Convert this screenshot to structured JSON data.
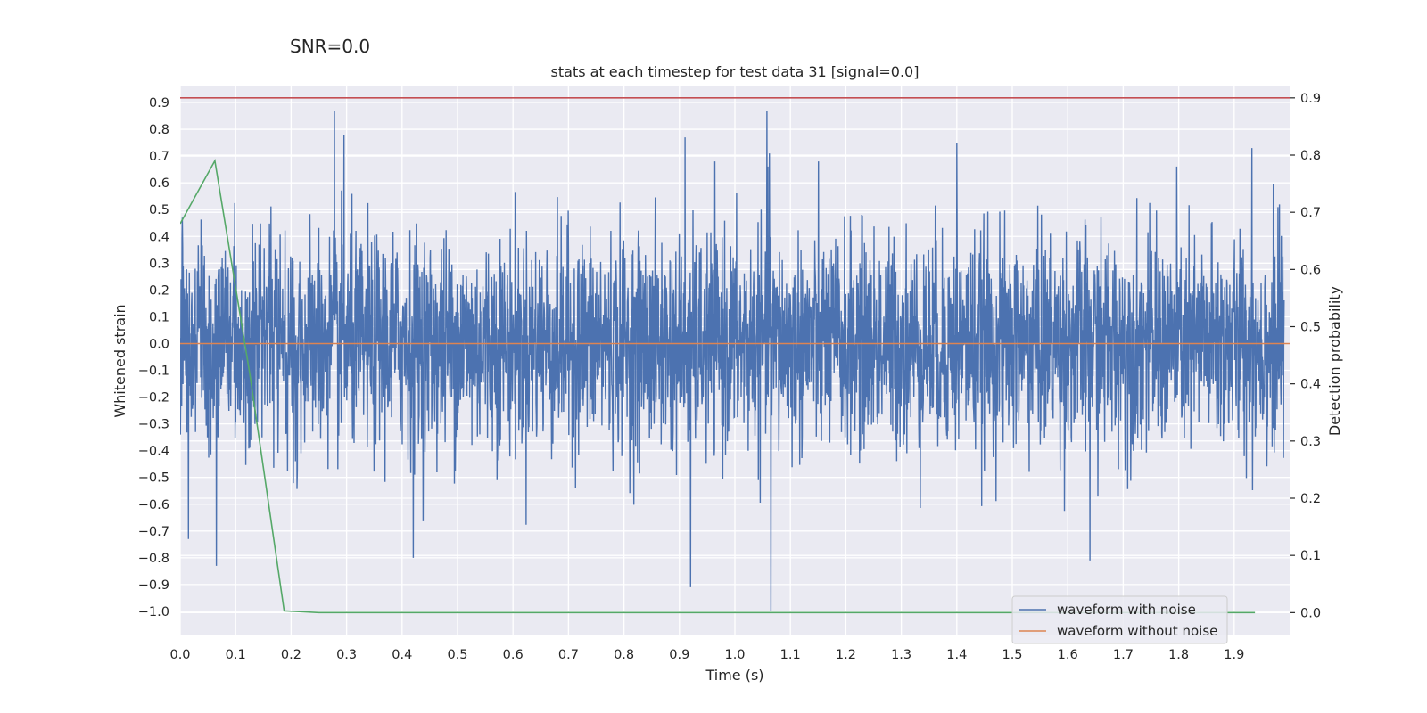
{
  "figure": {
    "suptitle": "SNR=0.0"
  },
  "chart_data": {
    "type": "line",
    "title": "stats at each timestep for test data 31 [signal=0.0]",
    "xlabel": "Time (s)",
    "ylabel": "Whitened strain",
    "ylabel_right": "Detection probability",
    "xlim": [
      0.0,
      2.0
    ],
    "ylim": [
      -1.09,
      0.96
    ],
    "ylim_right": [
      -0.04,
      0.92
    ],
    "xticks": [
      "0.0",
      "0.1",
      "0.2",
      "0.3",
      "0.4",
      "0.5",
      "0.6",
      "0.7",
      "0.8",
      "0.9",
      "1.0",
      "1.1",
      "1.2",
      "1.3",
      "1.4",
      "1.5",
      "1.6",
      "1.7",
      "1.8",
      "1.9"
    ],
    "yticks": [
      "0.9",
      "0.8",
      "0.7",
      "0.6",
      "0.5",
      "0.4",
      "0.3",
      "0.2",
      "0.1",
      "0.0",
      "−0.1",
      "−0.2",
      "−0.3",
      "−0.4",
      "−0.5",
      "−0.6",
      "−0.7",
      "−0.8",
      "−0.9",
      "−1.0"
    ],
    "yticks_right": [
      "0.9",
      "0.8",
      "0.7",
      "0.6",
      "0.5",
      "0.4",
      "0.3",
      "0.2",
      "0.1",
      "0.0"
    ],
    "grid": true,
    "legend_position": "lower-right",
    "series": [
      {
        "name": "waveform with noise",
        "axis": "left",
        "color": "#4c72b0",
        "noise_sigma": 0.2,
        "peaks": [
          [
            0.278,
            0.87
          ],
          [
            0.295,
            0.78
          ],
          [
            0.91,
            0.77
          ],
          [
            1.058,
            0.87
          ],
          [
            1.062,
            0.71
          ],
          [
            1.065,
            -1.0
          ],
          [
            0.92,
            -0.91
          ],
          [
            0.065,
            -0.83
          ],
          [
            0.42,
            -0.8
          ],
          [
            0.015,
            -0.73
          ],
          [
            1.932,
            0.73
          ],
          [
            1.64,
            -0.81
          ],
          [
            1.4,
            0.75
          ]
        ]
      },
      {
        "name": "waveform without noise",
        "axis": "left",
        "color": "#dd8452",
        "x": [
          0.0,
          2.0
        ],
        "y": [
          0.0,
          0.0
        ]
      },
      {
        "axis": "right",
        "color": "#55a868",
        "x": [
          0.0,
          0.0625,
          0.125,
          0.1875,
          0.25,
          0.3125,
          1.9375
        ],
        "y": [
          0.68,
          0.79,
          0.42,
          0.003,
          0.0,
          0.0,
          0.0
        ]
      },
      {
        "axis": "right",
        "color": "#c44e52",
        "x": [
          0.0,
          2.0
        ],
        "y": [
          0.9,
          0.9
        ]
      }
    ]
  }
}
